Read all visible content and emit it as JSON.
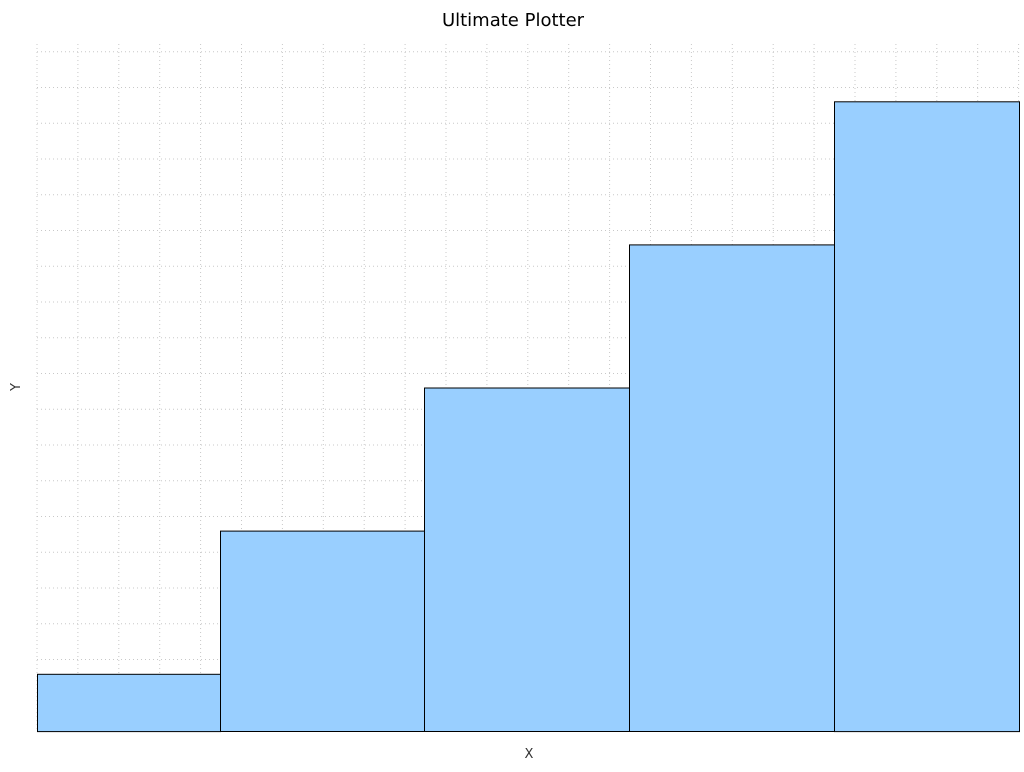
{
  "chart_data": {
    "type": "bar",
    "title": "Ultimate Plotter",
    "xlabel": "X",
    "ylabel": "Y",
    "grid": true,
    "legend": "none",
    "bar_color": "#99cfff",
    "bar_edge_color": "#000000",
    "grid_color": "#c8c8c8",
    "ylim": [
      0,
      12
    ],
    "bars": [
      {
        "x_start": 0,
        "x_end": 1,
        "value": 1
      },
      {
        "x_start": 1,
        "x_end": 2,
        "value": 3.5
      },
      {
        "x_start": 2,
        "x_end": 3,
        "value": 6
      },
      {
        "x_start": 3,
        "x_end": 4,
        "value": 8.5
      },
      {
        "x_start": 4,
        "x_end": 5,
        "value": 11
      }
    ]
  }
}
